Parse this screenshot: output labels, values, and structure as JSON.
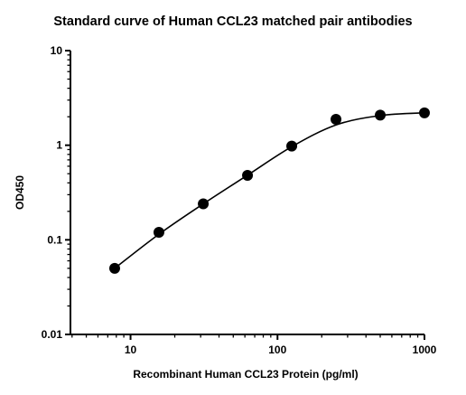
{
  "chart_data": {
    "type": "scatter",
    "title": "Standard curve of Human CCL23 matched pair antibodies",
    "xlabel": "Recombinant Human CCL23 Protein (pg/ml)",
    "ylabel": "OD450",
    "x_scale": "log",
    "y_scale": "log",
    "xlim": [
      3.9,
      1000
    ],
    "ylim": [
      0.01,
      10
    ],
    "x_ticks": [
      10,
      100,
      1000
    ],
    "x_tick_labels": [
      "10",
      "100",
      "1000"
    ],
    "y_ticks": [
      0.01,
      0.1,
      1,
      10
    ],
    "y_tick_labels": [
      "0.01",
      "0.1",
      "1",
      "10"
    ],
    "grid": false,
    "legend": "none",
    "has_fit_curve": true,
    "series": [
      {
        "x": [
          7.8,
          15.6,
          31.25,
          62.5,
          125,
          250,
          500,
          1000
        ],
        "y": [
          0.05,
          0.12,
          0.24,
          0.48,
          0.98,
          1.88,
          2.08,
          2.2
        ]
      }
    ]
  }
}
